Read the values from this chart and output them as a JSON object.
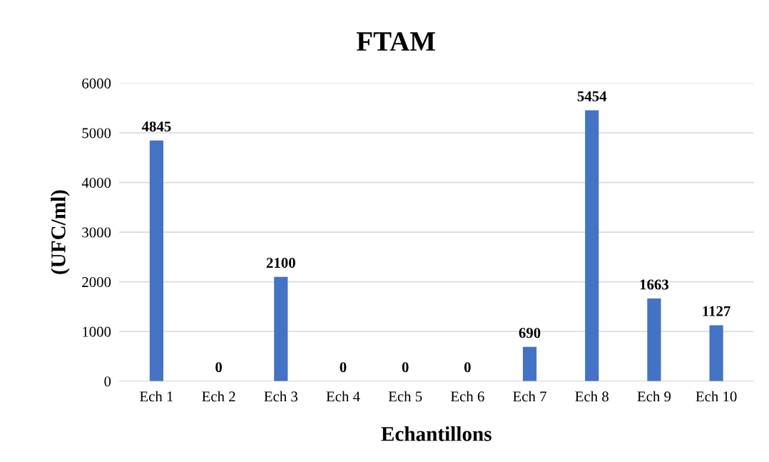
{
  "chart_data": {
    "type": "bar",
    "title": "FTAM",
    "xlabel": "Echantillons",
    "ylabel": "(UFC/ml)",
    "categories": [
      "Ech 1",
      "Ech 2",
      "Ech 3",
      "Ech 4",
      "Ech 5",
      "Ech 6",
      "Ech 7",
      "Ech 8",
      "Ech 9",
      "Ech 10"
    ],
    "values": [
      4845,
      0,
      2100,
      0,
      0,
      0,
      690,
      5454,
      1663,
      1127
    ],
    "color": "#4472c4",
    "ylim": [
      0,
      6000
    ],
    "yticks": [
      0,
      1000,
      2000,
      3000,
      4000,
      5000,
      6000
    ],
    "grid": "y",
    "data_labels": true
  }
}
